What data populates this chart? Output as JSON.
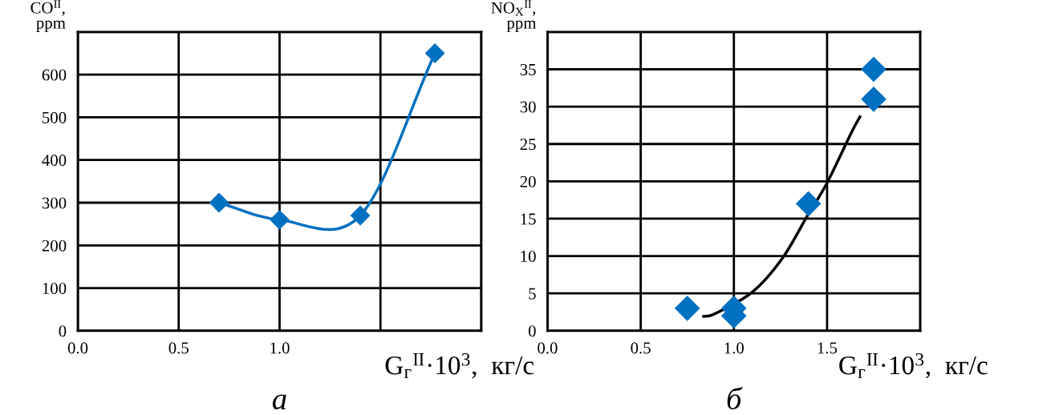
{
  "chart_data": [
    {
      "type": "line",
      "title": "а",
      "xlabel": "G$_{г}$$^{II}$·10$^{3}$,  кг/с",
      "ylabel": "CO$^{II}$,\nppm",
      "xlim": [
        0,
        2
      ],
      "xticks": [
        {
          "value": 0,
          "label": "0.0"
        },
        {
          "value": 0.5,
          "label": "0.5"
        },
        {
          "value": 1,
          "label": "1.0"
        },
        {
          "value": 1.5,
          "label": null
        },
        {
          "value": 2,
          "label": null
        }
      ],
      "ylim": [
        0,
        700
      ],
      "yticks": [
        0,
        100,
        200,
        300,
        400,
        500,
        600,
        {
          "value": 700,
          "label": null
        }
      ],
      "grid": true,
      "marker": "diamond",
      "series": [
        {
          "color": "#0070c0",
          "x": [
            0.7,
            1.0,
            1.4,
            1.77
          ],
          "values": [
            300,
            260,
            270,
            650
          ]
        }
      ]
    },
    {
      "type": "scatter",
      "title": "б",
      "xlabel": "G$_{г}$$^{II}$·10$^{3}$,  кг/с",
      "ylabel": "NO$_{X}$$^{II}$,\nppm",
      "xlim": [
        0,
        2
      ],
      "xticks": [
        {
          "value": 0,
          "label": "0.0"
        },
        {
          "value": 0.5,
          "label": "0.5"
        },
        {
          "value": 1,
          "label": "1.0"
        },
        {
          "value": 1.5,
          "label": "1.5"
        },
        {
          "value": 2,
          "label": null
        }
      ],
      "ylim": [
        0,
        40
      ],
      "yticks": [
        0,
        5,
        10,
        15,
        20,
        25,
        30,
        35,
        {
          "value": 40,
          "label": null
        }
      ],
      "grid": true,
      "marker": "diamond",
      "series": [
        {
          "type": "line",
          "marker": "none",
          "color": "#000000",
          "x": [
            0.83,
            0.9,
            1.1,
            1.26,
            1.39,
            1.5,
            1.63,
            1.68
          ],
          "values": [
            1.9,
            2.3,
            5.2,
            9.7,
            15.2,
            19.8,
            26.5,
            28.8
          ]
        },
        {
          "color": "#0070c0",
          "x": [
            0.75,
            1.0,
            1.0,
            1.4,
            1.75,
            1.75
          ],
          "values": [
            3,
            3,
            2,
            17,
            35,
            31
          ]
        }
      ]
    }
  ]
}
